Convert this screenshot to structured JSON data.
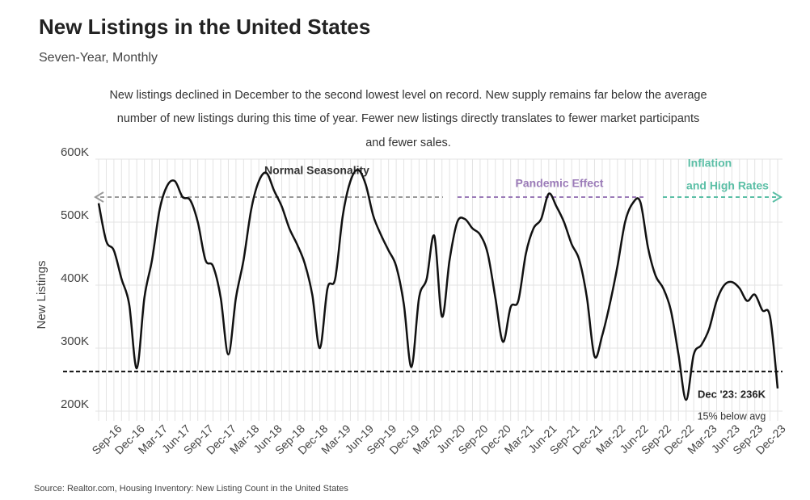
{
  "chart_data": {
    "type": "line",
    "title": "New Listings in the United States",
    "subtitle": "Seven-Year, Monthly",
    "description": [
      "New listings declined in December to the second lowest level on record. New supply remains far below the average",
      "number of new listings during this time of year. Fewer new listings directly translates to fewer market participants",
      "and fewer sales."
    ],
    "y_label": "New Listings",
    "source": "Source:  Realtor.com, Housing Inventory: New Listing Count in the United States",
    "annotations": {
      "normal": "Normal Seasonality",
      "pandemic": "Pandemic Effect",
      "inflation": [
        "Inflation",
        "and High Rates"
      ],
      "end_label": "Dec '23: 236K",
      "end_note": "15% below avg"
    },
    "reference_line": 263000,
    "categories": [
      null,
      null,
      "Sep-16",
      null,
      null,
      "Dec-16",
      null,
      null,
      "Mar-17",
      null,
      null,
      "Jun-17",
      null,
      null,
      "Sep-17",
      null,
      null,
      "Dec-17",
      null,
      null,
      "Mar-18",
      null,
      null,
      "Jun-18",
      null,
      null,
      "Sep-18",
      null,
      null,
      "Dec-18",
      null,
      null,
      "Mar-19",
      null,
      null,
      "Jun-19",
      null,
      null,
      "Sep-19",
      null,
      null,
      "Dec-19",
      null,
      null,
      "Mar-20",
      null,
      null,
      "Jun-20",
      null,
      null,
      "Sep-20",
      null,
      null,
      "Dec-20",
      null,
      null,
      "Mar-21",
      null,
      null,
      "Jun-21",
      null,
      null,
      "Sep-21",
      null,
      null,
      "Dec-21",
      null,
      null,
      "Mar-22",
      null,
      null,
      "Jun-22",
      null,
      null,
      "Sep-22",
      null,
      null,
      "Dec-22",
      null,
      null,
      "Mar-23",
      null,
      null,
      "Jun-23",
      null,
      null,
      "Sep-23",
      null,
      null,
      "Dec-23"
    ],
    "series": [
      {
        "name": "New Listings",
        "color": "#111111",
        "values": [
          530000,
          470000,
          455000,
          410000,
          370000,
          268000,
          380000,
          440000,
          520000,
          558000,
          565000,
          540000,
          535000,
          500000,
          440000,
          430000,
          380000,
          290000,
          380000,
          440000,
          520000,
          565000,
          578000,
          550000,
          525000,
          490000,
          465000,
          435000,
          385000,
          300000,
          395000,
          410000,
          510000,
          565000,
          583000,
          560000,
          510000,
          480000,
          455000,
          430000,
          370000,
          270000,
          380000,
          410000,
          478000,
          350000,
          440000,
          500000,
          505000,
          490000,
          480000,
          450000,
          380000,
          310000,
          365000,
          375000,
          450000,
          490000,
          505000,
          545000,
          525000,
          500000,
          465000,
          440000,
          380000,
          287000,
          320000,
          370000,
          430000,
          500000,
          530000,
          532000,
          460000,
          415000,
          395000,
          360000,
          290000,
          218000,
          290000,
          305000,
          330000,
          375000,
          400000,
          405000,
          395000,
          375000,
          385000,
          360000,
          350000,
          236000
        ]
      }
    ],
    "ylim": [
      200000,
      600000
    ],
    "yticks": [
      {
        "value": 200000,
        "label": "200K"
      },
      {
        "value": 300000,
        "label": "300K"
      },
      {
        "value": 400000,
        "label": "400K"
      },
      {
        "value": 500000,
        "label": "500K"
      },
      {
        "value": 600000,
        "label": "600K"
      }
    ],
    "grid": true
  }
}
